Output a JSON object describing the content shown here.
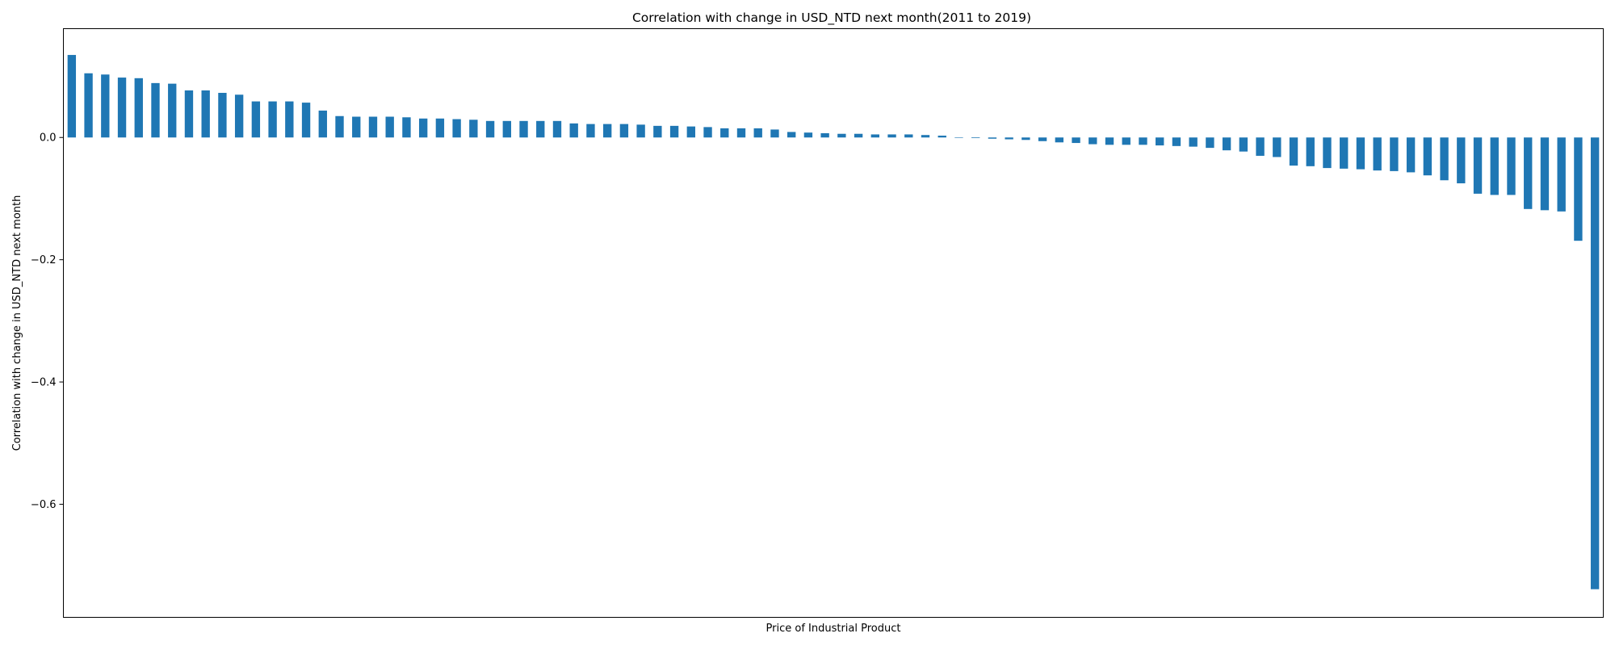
{
  "chart_data": {
    "type": "bar",
    "title": "Correlation with change in USD_NTD next month(2011 to 2019)",
    "xlabel": "Price of Industrial Product",
    "ylabel": "Correlation with change in USD_NTD next month",
    "ylim": [
      -0.785,
      0.178
    ],
    "yticks": [
      0.0,
      -0.2,
      -0.4,
      -0.6
    ],
    "ytick_labels": [
      "0.0",
      "−0.2",
      "−0.4",
      "−0.6"
    ],
    "grid": false,
    "legend": "none",
    "bar_color": "#1f77b4",
    "values": [
      0.135,
      0.105,
      0.103,
      0.098,
      0.097,
      0.089,
      0.088,
      0.077,
      0.077,
      0.073,
      0.07,
      0.059,
      0.059,
      0.059,
      0.057,
      0.044,
      0.035,
      0.034,
      0.034,
      0.034,
      0.033,
      0.031,
      0.031,
      0.03,
      0.029,
      0.027,
      0.027,
      0.027,
      0.027,
      0.027,
      0.023,
      0.022,
      0.022,
      0.022,
      0.021,
      0.019,
      0.019,
      0.018,
      0.017,
      0.015,
      0.015,
      0.015,
      0.013,
      0.009,
      0.008,
      0.007,
      0.006,
      0.006,
      0.005,
      0.005,
      0.005,
      0.004,
      0.003,
      0.0,
      -0.001,
      -0.002,
      -0.003,
      -0.004,
      -0.006,
      -0.008,
      -0.009,
      -0.011,
      -0.012,
      -0.012,
      -0.012,
      -0.013,
      -0.014,
      -0.015,
      -0.017,
      -0.021,
      -0.023,
      -0.03,
      -0.032,
      -0.046,
      -0.047,
      -0.05,
      -0.051,
      -0.052,
      -0.054,
      -0.055,
      -0.057,
      -0.062,
      -0.07,
      -0.075,
      -0.092,
      -0.094,
      -0.094,
      -0.117,
      -0.119,
      -0.121,
      -0.169,
      -0.739
    ]
  }
}
